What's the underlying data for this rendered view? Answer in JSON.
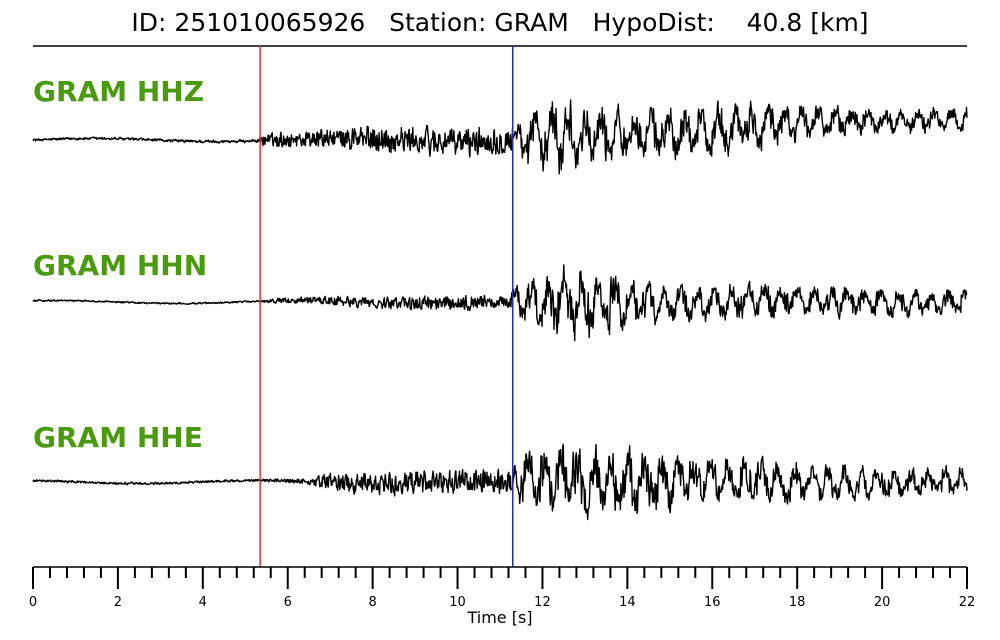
{
  "header": {
    "title": "ID: 251010065926   Station: GRAM   HypoDist:    40.8 [km]"
  },
  "colors": {
    "trace": "#000000",
    "label": "#4a9a0e",
    "p_pick": "#e8342a",
    "s_pick": "#2a2ab0"
  },
  "chart_data": {
    "type": "line",
    "xlabel": "Time [s]",
    "xlim": [
      0,
      22
    ],
    "major_ticks": [
      0,
      2,
      4,
      6,
      8,
      10,
      12,
      14,
      16,
      18,
      20,
      22
    ],
    "tick_labels": [
      "0",
      "2",
      "4",
      "6",
      "8",
      "10",
      "12",
      "14",
      "16",
      "18",
      "20",
      "22"
    ],
    "minor_tick_step": 0.4,
    "station": "GRAM",
    "hypo_dist_km": 40.8,
    "picks": [
      {
        "phase": "P",
        "time": 5.35
      },
      {
        "phase": "S",
        "time": 11.3
      }
    ],
    "series": [
      {
        "name": "GRAM HHZ",
        "envelope": [
          [
            0.0,
            0.03
          ],
          [
            5.3,
            0.04
          ],
          [
            5.4,
            0.18
          ],
          [
            7.0,
            0.25
          ],
          [
            8.0,
            0.35
          ],
          [
            10.0,
            0.35
          ],
          [
            11.2,
            0.35
          ],
          [
            11.5,
            0.6
          ],
          [
            12.3,
            0.95
          ],
          [
            13.0,
            0.75
          ],
          [
            14.0,
            0.62
          ],
          [
            16.0,
            0.65
          ],
          [
            17.0,
            0.6
          ],
          [
            18.0,
            0.45
          ],
          [
            20.0,
            0.35
          ],
          [
            22.0,
            0.28
          ]
        ],
        "mean_offset": [
          [
            0.0,
            0.0
          ],
          [
            12.0,
            0.0
          ],
          [
            16.0,
            0.25
          ],
          [
            19.0,
            0.35
          ],
          [
            22.0,
            0.45
          ]
        ]
      },
      {
        "name": "GRAM HHN",
        "envelope": [
          [
            0.0,
            0.02
          ],
          [
            5.3,
            0.02
          ],
          [
            5.5,
            0.05
          ],
          [
            7.0,
            0.12
          ],
          [
            9.0,
            0.18
          ],
          [
            11.2,
            0.2
          ],
          [
            11.6,
            0.55
          ],
          [
            12.5,
            0.95
          ],
          [
            13.2,
            0.9
          ],
          [
            14.0,
            0.55
          ],
          [
            16.0,
            0.45
          ],
          [
            18.0,
            0.4
          ],
          [
            20.0,
            0.35
          ],
          [
            22.0,
            0.3
          ]
        ],
        "mean_offset": [
          [
            0.0,
            0.0
          ],
          [
            22.0,
            0.0
          ]
        ]
      },
      {
        "name": "GRAM HHE",
        "envelope": [
          [
            0.0,
            0.03
          ],
          [
            5.3,
            0.03
          ],
          [
            6.5,
            0.08
          ],
          [
            7.0,
            0.25
          ],
          [
            9.0,
            0.32
          ],
          [
            11.2,
            0.35
          ],
          [
            11.6,
            0.7
          ],
          [
            12.3,
            0.9
          ],
          [
            13.0,
            0.95
          ],
          [
            14.0,
            0.8
          ],
          [
            16.0,
            0.6
          ],
          [
            18.0,
            0.5
          ],
          [
            20.0,
            0.4
          ],
          [
            22.0,
            0.35
          ]
        ],
        "mean_offset": [
          [
            0.0,
            0.0
          ],
          [
            22.0,
            0.0
          ]
        ]
      }
    ]
  }
}
